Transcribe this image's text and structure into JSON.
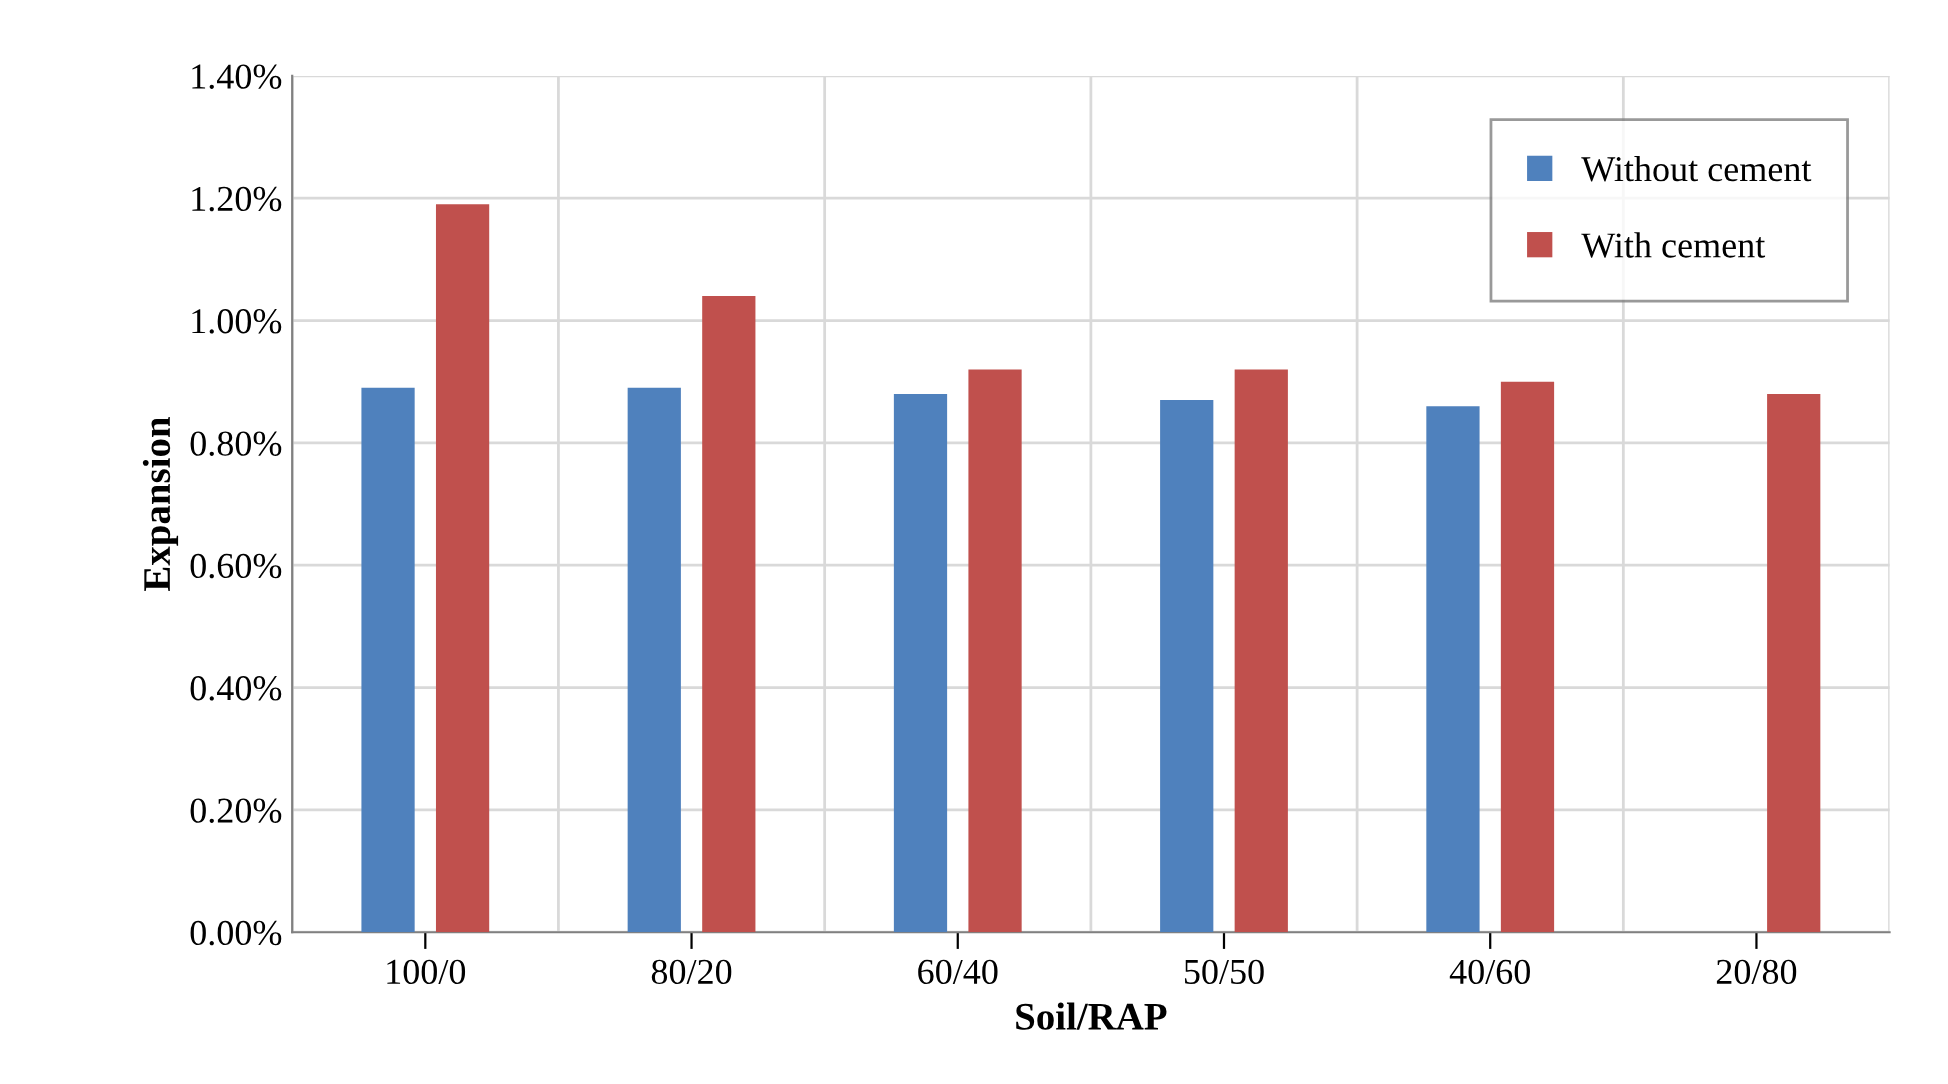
{
  "chart_data": {
    "type": "bar",
    "xlabel": "Soil/RAP",
    "ylabel": "Expansion",
    "categories": [
      "100/0",
      "80/20",
      "60/40",
      "50/50",
      "40/60",
      "20/80"
    ],
    "series": [
      {
        "name": "Without cement",
        "color": "#4f81bd",
        "values": [
          0.89,
          0.89,
          0.88,
          0.87,
          0.86,
          null
        ]
      },
      {
        "name": "With cement",
        "color": "#c0504d",
        "values": [
          1.19,
          1.04,
          0.92,
          0.92,
          0.9,
          0.88
        ]
      }
    ],
    "ylim": [
      0,
      1.4
    ],
    "yticks": [
      {
        "value": 0,
        "label": "0.00%"
      },
      {
        "value": 0.2,
        "label": "0.20%"
      },
      {
        "value": 0.4,
        "label": "0.40%"
      },
      {
        "value": 0.6,
        "label": "0.60%"
      },
      {
        "value": 0.8,
        "label": "0.80%"
      },
      {
        "value": 1.0,
        "label": "1.00%"
      },
      {
        "value": 1.2,
        "label": "1.20%"
      },
      {
        "value": 1.4,
        "label": "1.40%"
      }
    ],
    "grid": true,
    "legend": "top right"
  }
}
